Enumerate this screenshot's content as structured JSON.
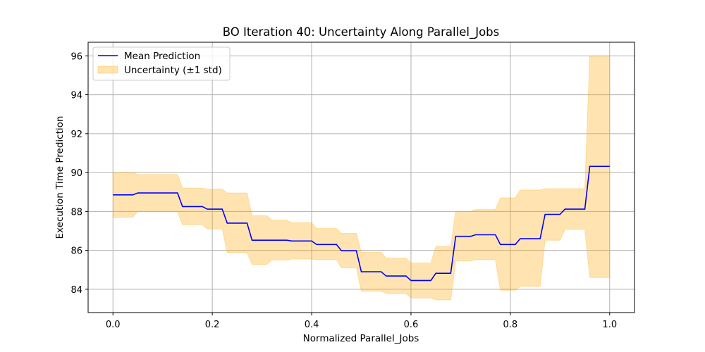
{
  "chart_data": {
    "type": "line",
    "title": "BO Iteration 40: Uncertainty Along Parallel_Jobs",
    "xlabel": "Normalized Parallel_Jobs",
    "ylabel": "Execution Time Prediction",
    "xlim": [
      -0.05,
      1.05
    ],
    "ylim": [
      82.8,
      96.7
    ],
    "xticks": [
      0.0,
      0.2,
      0.4,
      0.6,
      0.8,
      1.0
    ],
    "xtick_labels": [
      "0.0",
      "0.2",
      "0.4",
      "0.6",
      "0.8",
      "1.0"
    ],
    "yticks": [
      84,
      86,
      88,
      90,
      92,
      94,
      96
    ],
    "ytick_labels": [
      "84",
      "86",
      "88",
      "90",
      "92",
      "94",
      "96"
    ],
    "grid": true,
    "legend": {
      "position": "upper-left",
      "entries": [
        {
          "label": "Mean Prediction",
          "kind": "line",
          "color": "#0000ff"
        },
        {
          "label": "Uncertainty (±1 std)",
          "kind": "patch",
          "color": "#ffa500",
          "alpha": 0.3
        }
      ]
    },
    "series": [
      {
        "name": "Mean Prediction",
        "color": "#0000ff",
        "x": [
          0.0,
          0.04,
          0.05,
          0.13,
          0.14,
          0.18,
          0.19,
          0.22,
          0.23,
          0.27,
          0.28,
          0.31,
          0.32,
          0.35,
          0.36,
          0.4,
          0.41,
          0.45,
          0.46,
          0.49,
          0.5,
          0.54,
          0.55,
          0.59,
          0.6,
          0.64,
          0.65,
          0.68,
          0.69,
          0.72,
          0.73,
          0.77,
          0.78,
          0.81,
          0.82,
          0.86,
          0.87,
          0.9,
          0.91,
          0.95,
          0.96,
          1.0
        ],
        "y": [
          88.85,
          88.85,
          88.95,
          88.95,
          88.25,
          88.25,
          88.12,
          88.12,
          87.4,
          87.4,
          86.52,
          86.52,
          86.52,
          86.52,
          86.48,
          86.48,
          86.3,
          86.3,
          85.98,
          85.98,
          84.9,
          84.9,
          84.68,
          84.68,
          84.45,
          84.45,
          84.82,
          84.82,
          86.72,
          86.72,
          86.8,
          86.8,
          86.3,
          86.3,
          86.6,
          86.6,
          87.85,
          87.85,
          88.12,
          88.12,
          90.32,
          90.32
        ]
      },
      {
        "name": "Uncertainty (±1 std)",
        "color": "#ffa500",
        "alpha": 0.3,
        "x": [
          0.0,
          0.04,
          0.05,
          0.13,
          0.14,
          0.18,
          0.19,
          0.22,
          0.23,
          0.27,
          0.28,
          0.31,
          0.32,
          0.35,
          0.36,
          0.4,
          0.41,
          0.45,
          0.46,
          0.49,
          0.5,
          0.54,
          0.55,
          0.59,
          0.6,
          0.64,
          0.65,
          0.68,
          0.69,
          0.72,
          0.73,
          0.77,
          0.78,
          0.81,
          0.82,
          0.86,
          0.87,
          0.9,
          0.91,
          0.95,
          0.96,
          1.0
        ],
        "upper": [
          90.0,
          90.0,
          89.9,
          89.9,
          89.2,
          89.2,
          89.15,
          89.15,
          88.95,
          88.95,
          87.78,
          87.78,
          87.55,
          87.55,
          87.42,
          87.42,
          87.12,
          87.12,
          86.87,
          86.87,
          85.9,
          85.9,
          85.6,
          85.6,
          85.35,
          85.35,
          86.2,
          86.2,
          88.0,
          88.0,
          88.1,
          88.1,
          88.7,
          88.7,
          89.1,
          89.1,
          89.17,
          89.17,
          89.17,
          89.17,
          96.0,
          96.0
        ],
        "lower": [
          87.7,
          87.7,
          88.0,
          88.0,
          87.32,
          87.32,
          87.1,
          87.1,
          85.88,
          85.88,
          85.28,
          85.28,
          85.5,
          85.5,
          85.55,
          85.55,
          85.52,
          85.52,
          85.1,
          85.1,
          83.9,
          83.9,
          83.78,
          83.78,
          83.55,
          83.55,
          83.45,
          83.45,
          85.45,
          85.45,
          85.52,
          85.52,
          83.95,
          83.95,
          84.15,
          84.15,
          86.52,
          86.52,
          87.08,
          87.08,
          84.6,
          84.6
        ]
      }
    ]
  }
}
